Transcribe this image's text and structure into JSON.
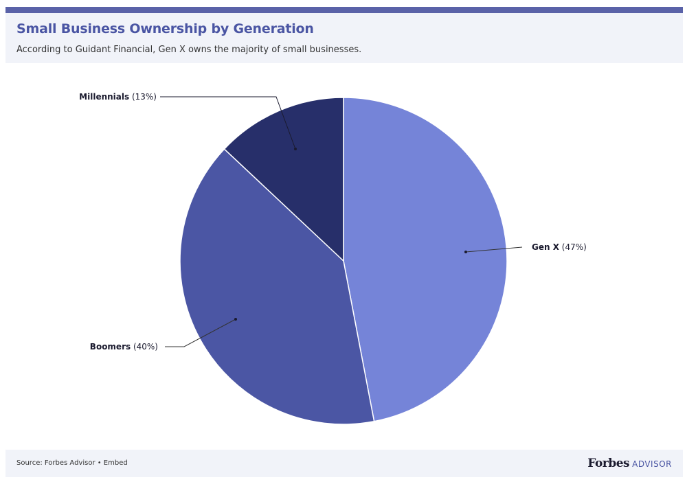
{
  "header": {
    "title": "Small Business Ownership by Generation",
    "subtitle": "According to Guidant Financial, Gen X owns the majority of small businesses."
  },
  "chart_data": {
    "type": "pie",
    "categories": [
      "Gen X",
      "Boomers",
      "Millennials"
    ],
    "values": [
      47,
      40,
      13
    ],
    "unit": "%",
    "value_labels": [
      "(47%)",
      "(40%)",
      "(13%)"
    ],
    "colors": [
      "#7584d8",
      "#4b56a4",
      "#272f6a"
    ],
    "start": "12 o'clock, clockwise"
  },
  "footer": {
    "source": "Source: Forbes Advisor • Embed",
    "brand_name": "Forbes",
    "brand_sub": "ADVISOR"
  }
}
